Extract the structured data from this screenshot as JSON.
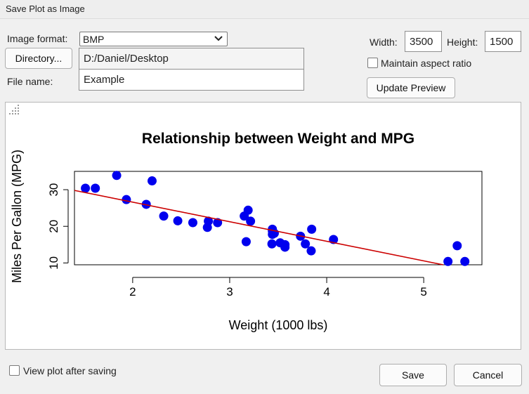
{
  "window": {
    "title": "Save Plot as Image"
  },
  "form": {
    "format_label": "Image format:",
    "format_value": "BMP",
    "directory_button": "Directory...",
    "directory_value": "D:/Daniel/Desktop",
    "filename_label": "File name:",
    "filename_value": "Example",
    "width_label": "Width:",
    "width_value": "3500",
    "height_label": "Height:",
    "height_value": "1500",
    "maintain_aspect_label": "Maintain aspect ratio",
    "maintain_aspect_checked": false,
    "update_preview_button": "Update Preview"
  },
  "footer": {
    "view_after_label": "View plot after saving",
    "view_after_checked": false,
    "save_button": "Save",
    "cancel_button": "Cancel"
  },
  "icons": {
    "format_dropdown": "chevron-down-icon",
    "resize_grip": "resize-grip-icon"
  },
  "colors": {
    "points": "#0000ee",
    "regression_line": "#cc0000"
  },
  "chart_data": {
    "type": "scatter",
    "title": "Relationship between Weight and MPG",
    "xlabel": "Weight (1000 lbs)",
    "ylabel": "Miles Per Gallon (MPG)",
    "xlim": [
      1.4,
      5.6
    ],
    "ylim": [
      9.5,
      35.0
    ],
    "x_ticks": [
      2,
      3,
      4,
      5
    ],
    "y_ticks": [
      10,
      20,
      30
    ],
    "grid": false,
    "legend": "none",
    "points": [
      {
        "x": 2.62,
        "y": 21.0
      },
      {
        "x": 2.875,
        "y": 21.0
      },
      {
        "x": 2.32,
        "y": 22.8
      },
      {
        "x": 3.215,
        "y": 21.4
      },
      {
        "x": 3.44,
        "y": 18.7
      },
      {
        "x": 3.46,
        "y": 18.1
      },
      {
        "x": 3.57,
        "y": 14.3
      },
      {
        "x": 3.19,
        "y": 24.4
      },
      {
        "x": 3.15,
        "y": 22.8
      },
      {
        "x": 3.44,
        "y": 19.2
      },
      {
        "x": 3.44,
        "y": 17.8
      },
      {
        "x": 4.07,
        "y": 16.4
      },
      {
        "x": 3.73,
        "y": 17.3
      },
      {
        "x": 3.78,
        "y": 15.2
      },
      {
        "x": 5.25,
        "y": 10.4
      },
      {
        "x": 5.424,
        "y": 10.4
      },
      {
        "x": 5.345,
        "y": 14.7
      },
      {
        "x": 2.2,
        "y": 32.4
      },
      {
        "x": 1.615,
        "y": 30.4
      },
      {
        "x": 1.835,
        "y": 33.9
      },
      {
        "x": 2.465,
        "y": 21.5
      },
      {
        "x": 3.52,
        "y": 15.5
      },
      {
        "x": 3.435,
        "y": 15.2
      },
      {
        "x": 3.84,
        "y": 13.3
      },
      {
        "x": 3.845,
        "y": 19.2
      },
      {
        "x": 1.935,
        "y": 27.3
      },
      {
        "x": 2.14,
        "y": 26.0
      },
      {
        "x": 1.513,
        "y": 30.4
      },
      {
        "x": 3.17,
        "y": 15.8
      },
      {
        "x": 2.77,
        "y": 19.7
      },
      {
        "x": 3.57,
        "y": 15.0
      },
      {
        "x": 2.78,
        "y": 21.4
      }
    ],
    "regression": {
      "intercept": 37.285,
      "slope": -5.344
    }
  }
}
